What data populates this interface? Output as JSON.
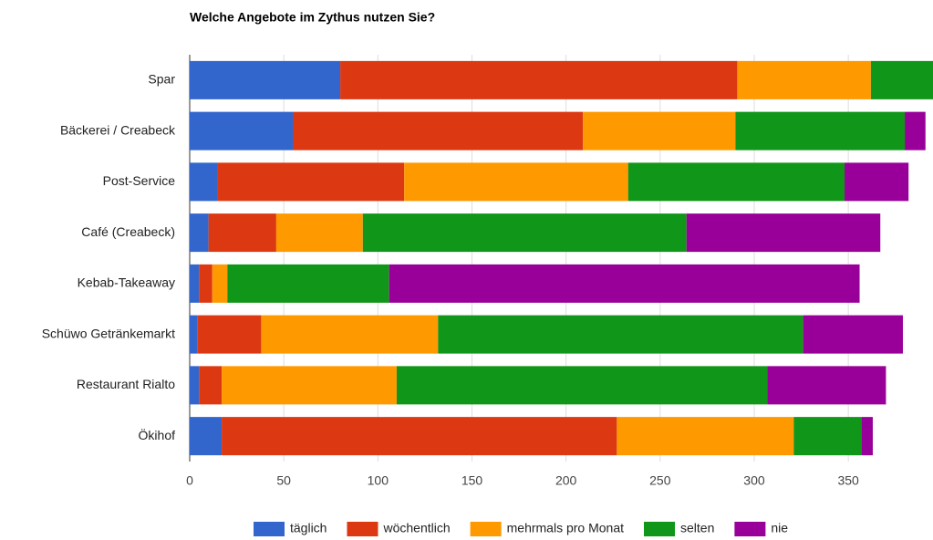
{
  "chart_data": {
    "type": "stacked_bar_horizontal",
    "title": "Welche Angebote im Zythus nutzen Sie?",
    "categories": [
      "Spar",
      "Bäckerei / Creabeck",
      "Post-Service",
      "Café (Creabeck)",
      "Kebab-Takeaway",
      "Schüwo Getränkemarkt",
      "Restaurant Rialto",
      "Ökihof"
    ],
    "series": [
      {
        "name": "täglich",
        "color": "#3366cc",
        "values": [
          80,
          55,
          15,
          10,
          5,
          4,
          5,
          17
        ]
      },
      {
        "name": "wöchentlich",
        "color": "#dc3912",
        "values": [
          211,
          154,
          99,
          36,
          7,
          34,
          12,
          210
        ]
      },
      {
        "name": "mehrmals pro Monat",
        "color": "#ff9900",
        "values": [
          71,
          81,
          119,
          46,
          8,
          94,
          93,
          94
        ]
      },
      {
        "name": "selten",
        "color": "#109618",
        "values": [
          33,
          90,
          115,
          172,
          86,
          194,
          197,
          36
        ]
      },
      {
        "name": "nie",
        "color": "#990099",
        "values": [
          0,
          11,
          34,
          103,
          250,
          53,
          63,
          6
        ]
      }
    ],
    "xlim": [
      0,
      395
    ],
    "xticks": [
      0,
      50,
      100,
      150,
      200,
      250,
      300,
      350
    ],
    "grid": true,
    "legend": "bottom"
  }
}
